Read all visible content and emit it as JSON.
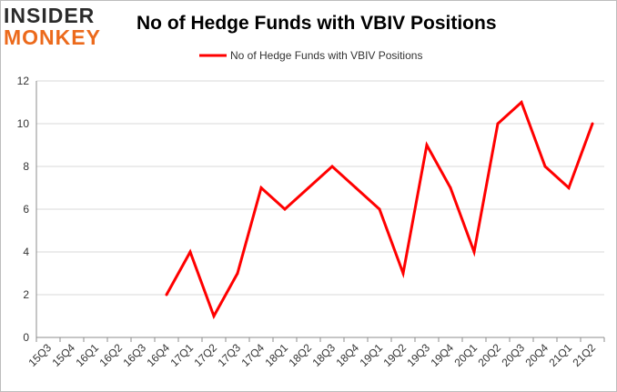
{
  "logo": {
    "line1": "INSIDER",
    "line2": "MONKEY"
  },
  "chart_data": {
    "type": "line",
    "title": "No of Hedge Funds with VBIV Positions",
    "xlabel": "",
    "ylabel": "",
    "categories": [
      "15Q3",
      "15Q4",
      "16Q1",
      "16Q2",
      "16Q3",
      "16Q4",
      "17Q1",
      "17Q2",
      "17Q3",
      "17Q4",
      "18Q1",
      "18Q2",
      "18Q3",
      "18Q4",
      "19Q1",
      "19Q2",
      "19Q3",
      "19Q4",
      "20Q1",
      "20Q2",
      "20Q3",
      "20Q4",
      "21Q1",
      "21Q2"
    ],
    "series": [
      {
        "name": "No of Hedge Funds with VBIV Positions",
        "color": "#ff0000",
        "values": [
          null,
          null,
          null,
          null,
          null,
          2,
          4,
          1,
          3,
          7,
          6,
          7,
          8,
          7,
          6,
          3,
          9,
          7,
          4,
          10,
          11,
          8,
          7,
          10
        ]
      }
    ],
    "ylim": [
      0,
      12
    ],
    "yticks": [
      0,
      2,
      4,
      6,
      8,
      10,
      12
    ],
    "grid": "horizontal",
    "legend_position": "top-center"
  }
}
